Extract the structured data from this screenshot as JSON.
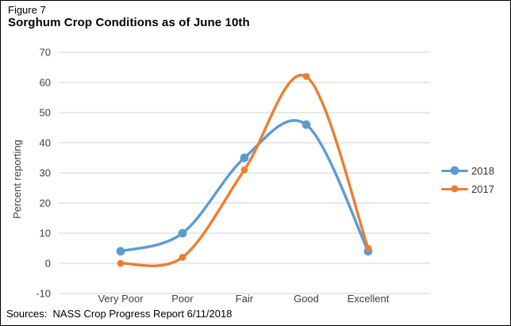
{
  "figure": {
    "label": "Figure 7",
    "title": "Sorghum Crop Conditions as of June 10th"
  },
  "chart_data": {
    "type": "line",
    "categories": [
      "Very Poor",
      "Poor",
      "Fair",
      "Good",
      "Excellent"
    ],
    "series": [
      {
        "name": "2018",
        "values": [
          4,
          10,
          35,
          46,
          4
        ],
        "color": "#5B9BD5"
      },
      {
        "name": "2017",
        "values": [
          0,
          2,
          31,
          62,
          5
        ],
        "color": "#ED7D31"
      }
    ],
    "title": "Sorghum Crop Conditions as of June 10th",
    "xlabel": "",
    "ylabel": "Percent reporting",
    "ylim": [
      -10,
      70
    ],
    "ytick_step": 10,
    "yticks": [
      -10,
      0,
      10,
      20,
      30,
      40,
      50,
      60,
      70
    ],
    "grid": true,
    "gridline_color": "#D9D9D9",
    "legend_position": "right",
    "smooth": true
  },
  "footer": {
    "sources": "Sources:  NASS Crop Progress Report 6/11/2018"
  }
}
